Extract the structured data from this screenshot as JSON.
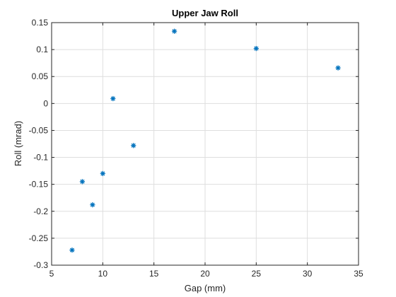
{
  "chart_data": {
    "type": "scatter",
    "title": "Upper Jaw Roll",
    "xlabel": "Gap (mm)",
    "ylabel": "Roll (mrad)",
    "xlim": [
      5,
      35
    ],
    "ylim": [
      -0.3,
      0.15
    ],
    "xticks": [
      "5",
      "10",
      "15",
      "20",
      "25",
      "30",
      "35"
    ],
    "yticks": [
      "-0.3",
      "-0.25",
      "-0.2",
      "-0.15",
      "-0.1",
      "-0.05",
      "0",
      "0.05",
      "0.1",
      "0.15"
    ],
    "grid": true,
    "marker": "asterisk",
    "marker_color": "#0072BD",
    "points": [
      {
        "x": 7,
        "y": -0.272
      },
      {
        "x": 8,
        "y": -0.145
      },
      {
        "x": 9,
        "y": -0.188
      },
      {
        "x": 10,
        "y": -0.13
      },
      {
        "x": 11,
        "y": 0.009
      },
      {
        "x": 13,
        "y": -0.078
      },
      {
        "x": 17,
        "y": 0.134
      },
      {
        "x": 25,
        "y": 0.102
      },
      {
        "x": 33,
        "y": 0.066
      }
    ]
  }
}
